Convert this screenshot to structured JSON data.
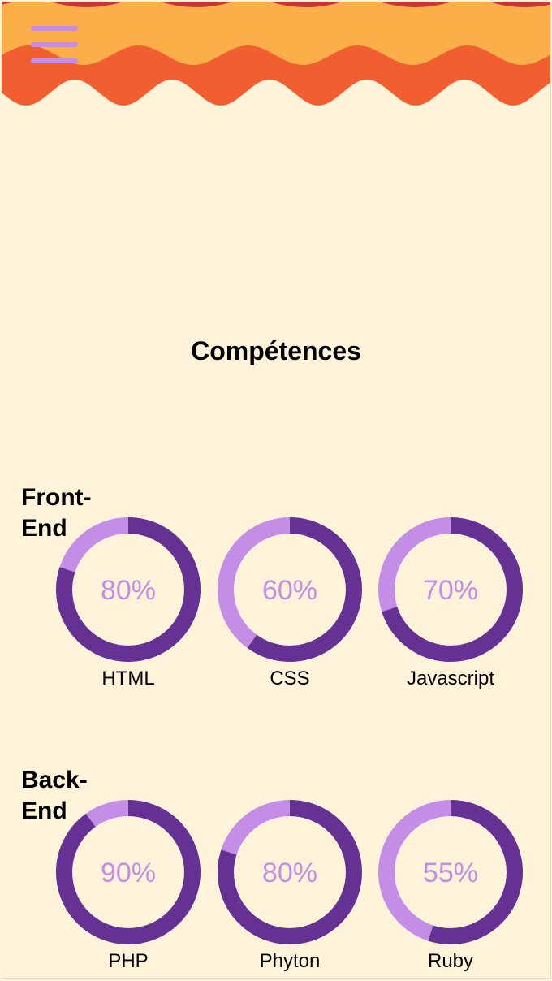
{
  "header": {
    "menu_icon": "hamburger-icon",
    "colors": {
      "top_band": "#fcaf49",
      "wave_band": "#f15f31",
      "top_scallop": "#c9343a",
      "icon": "#c48de6"
    }
  },
  "section": {
    "title": "Compétences"
  },
  "colors": {
    "ring_fill": "#653294",
    "ring_track": "#c48de6",
    "percent_text": "#c48de6",
    "background": "#fff3d9"
  },
  "groups": [
    {
      "title": "Front-\nEnd",
      "skills": [
        {
          "name": "HTML",
          "percent_label": "80%",
          "value": 80
        },
        {
          "name": "CSS",
          "percent_label": "60%",
          "value": 60
        },
        {
          "name": "Javascript",
          "percent_label": "70%",
          "value": 70
        }
      ]
    },
    {
      "title": "Back-\nEnd",
      "skills": [
        {
          "name": "PHP",
          "percent_label": "90%",
          "value": 90
        },
        {
          "name": "Phyton",
          "percent_label": "80%",
          "value": 80
        },
        {
          "name": "Ruby",
          "percent_label": "55%",
          "value": 55
        }
      ]
    }
  ]
}
